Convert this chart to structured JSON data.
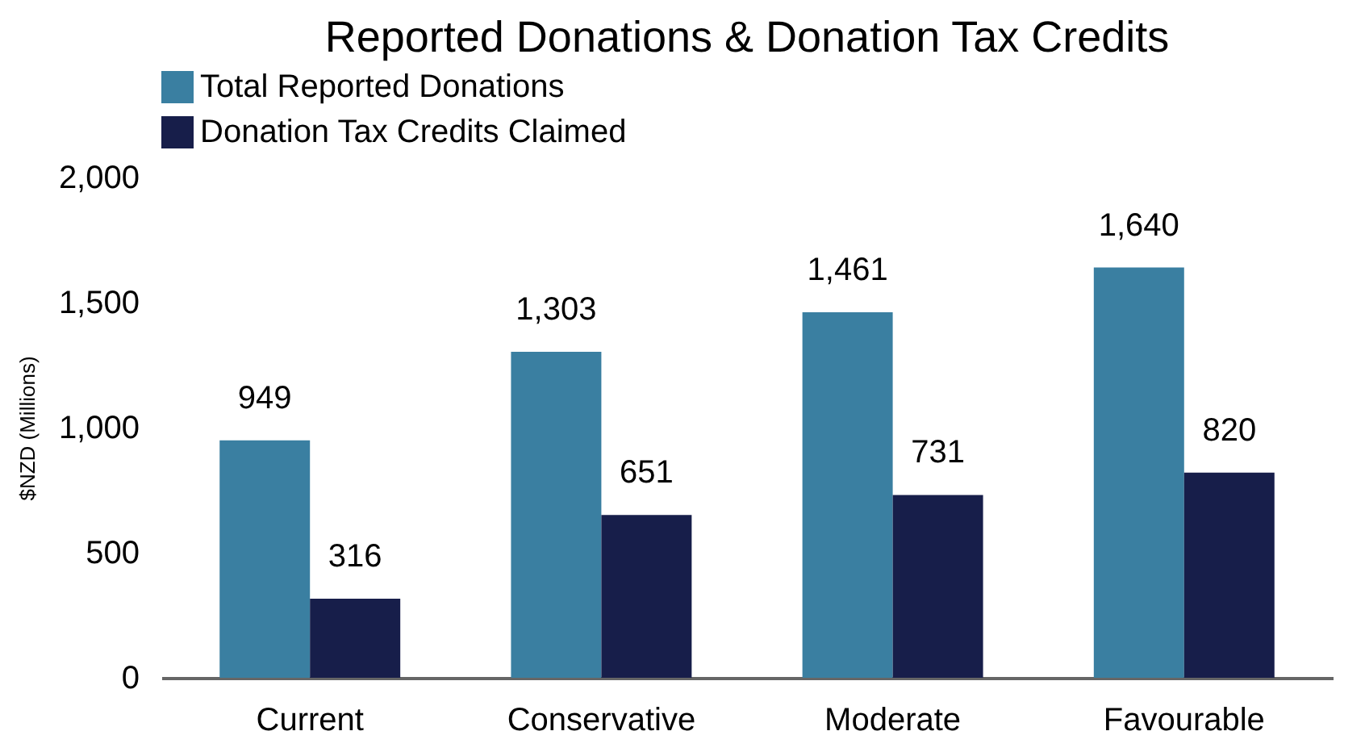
{
  "chart_data": {
    "type": "bar",
    "title": "Reported Donations & Donation Tax Credits",
    "ylabel": "$NZD (Millions)",
    "categories": [
      "Current",
      "Conservative",
      "Moderate",
      "Favourable"
    ],
    "series": [
      {
        "name": "Total Reported Donations",
        "color": "#3a7fa1",
        "values": [
          949,
          1303,
          1461,
          1640
        ],
        "value_labels": [
          "949",
          "1,303",
          "1,461",
          "1,640"
        ]
      },
      {
        "name": "Donation Tax Credits Claimed",
        "color": "#171e4a",
        "values": [
          316,
          651,
          731,
          820
        ],
        "value_labels": [
          "316",
          "651",
          "731",
          "820"
        ]
      }
    ],
    "ylim": [
      0,
      2000
    ],
    "yticks": [
      0,
      500,
      {
        "value": 1000,
        "label": "1,000"
      },
      {
        "value": 1500,
        "label": "1,500"
      },
      {
        "value": 2000,
        "label": "2,000"
      }
    ],
    "legend": "top"
  }
}
